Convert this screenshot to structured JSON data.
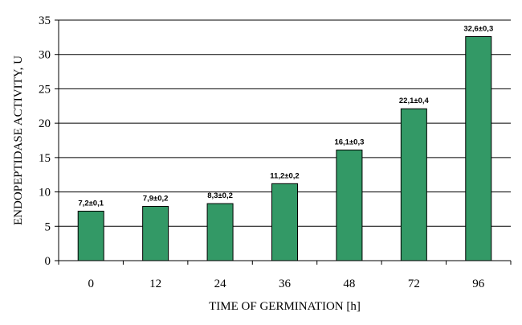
{
  "chart_data": {
    "type": "bar",
    "categories": [
      "0",
      "12",
      "24",
      "36",
      "48",
      "72",
      "96"
    ],
    "values": [
      7.2,
      7.9,
      8.3,
      11.2,
      16.1,
      22.1,
      32.6
    ],
    "data_labels": [
      "7,2±0,1",
      "7,9±0,2",
      "8,3±0,2",
      "11,2±0,2",
      "16,1±0,3",
      "22,1±0,4",
      "32,6±0,3"
    ],
    "title": "",
    "xlabel": "TIME OF GERMINATION [h]",
    "ylabel": "ENDOPEPTIDASE ACTIVITY, U",
    "ylim": [
      0,
      35
    ],
    "yticks": [
      "0",
      "5",
      "10",
      "15",
      "20",
      "25",
      "30",
      "35"
    ],
    "grid": true,
    "legend": "none",
    "bar_color": "#339966",
    "bar_edge_color": "#000000",
    "grid_color": "#000000"
  }
}
